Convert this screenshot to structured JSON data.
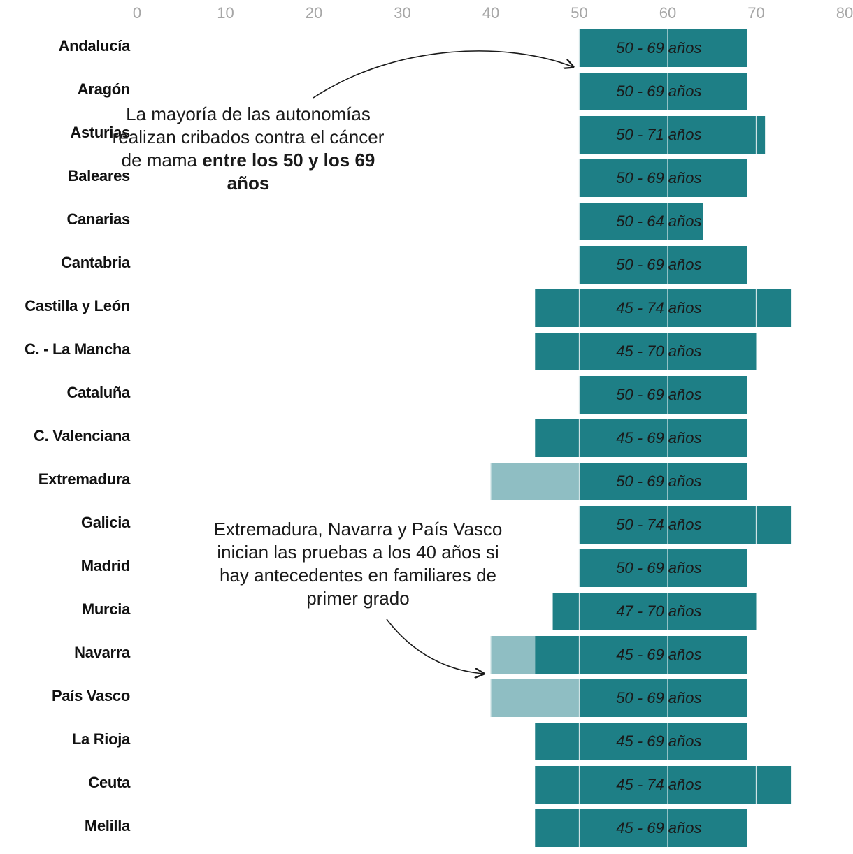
{
  "chart_data": {
    "type": "bar",
    "orientation": "horizontal",
    "layout": "range",
    "x_ticks": [
      0,
      10,
      20,
      30,
      40,
      50,
      60,
      70,
      80
    ],
    "xlim": [
      0,
      80
    ],
    "grid": "vertical lines inside bars",
    "colors": {
      "main": "#1e7f86",
      "extra": "#8fbec3",
      "grid": "#cfe3e5"
    },
    "categories": [
      "Andalucía",
      "Aragón",
      "Asturias",
      "Baleares",
      "Canarias",
      "Cantabria",
      "Castilla y León",
      "C. - La Mancha",
      "Cataluña",
      "C. Valenciana",
      "Extremadura",
      "Galicia",
      "Madrid",
      "Murcia",
      "Navarra",
      "País Vasco",
      "La Rioja",
      "Ceuta",
      "Melilla"
    ],
    "rows": [
      {
        "start": 50,
        "end": 69,
        "label": "50 - 69 años"
      },
      {
        "start": 50,
        "end": 69,
        "label": "50 - 69 años"
      },
      {
        "start": 50,
        "end": 71,
        "label": "50 - 71 años"
      },
      {
        "start": 50,
        "end": 69,
        "label": "50 - 69 años"
      },
      {
        "start": 50,
        "end": 64,
        "label": "50 - 64 años"
      },
      {
        "start": 50,
        "end": 69,
        "label": "50 - 69 años"
      },
      {
        "start": 45,
        "end": 74,
        "label": "45 - 74 años"
      },
      {
        "start": 45,
        "end": 70,
        "label": "45 - 70 años"
      },
      {
        "start": 50,
        "end": 69,
        "label": "50 - 69 años"
      },
      {
        "start": 45,
        "end": 69,
        "label": "45 - 69 años"
      },
      {
        "start": 50,
        "end": 69,
        "label": "50 - 69 años",
        "extra_start": 40
      },
      {
        "start": 50,
        "end": 74,
        "label": "50 - 74 años"
      },
      {
        "start": 50,
        "end": 69,
        "label": "50 - 69 años"
      },
      {
        "start": 47,
        "end": 70,
        "label": "47 - 70 años"
      },
      {
        "start": 45,
        "end": 69,
        "label": "45 - 69 años",
        "extra_start": 40
      },
      {
        "start": 50,
        "end": 69,
        "label": "50 - 69 años",
        "extra_start": 40
      },
      {
        "start": 45,
        "end": 69,
        "label": "45 - 69 años"
      },
      {
        "start": 45,
        "end": 74,
        "label": "45 - 74 años"
      },
      {
        "start": 45,
        "end": 69,
        "label": "45 - 69 años"
      }
    ]
  },
  "annotations": {
    "top": {
      "text_plain": "La mayoría de las autonomías realizan cribados contra el cáncer de mama ",
      "text_bold": "entre los 50 y los 69 años"
    },
    "bottom": {
      "text": "Extremadura, Navarra y País Vasco inician las pruebas a los 40 años si hay antecedentes en familiares de primer grado"
    }
  }
}
